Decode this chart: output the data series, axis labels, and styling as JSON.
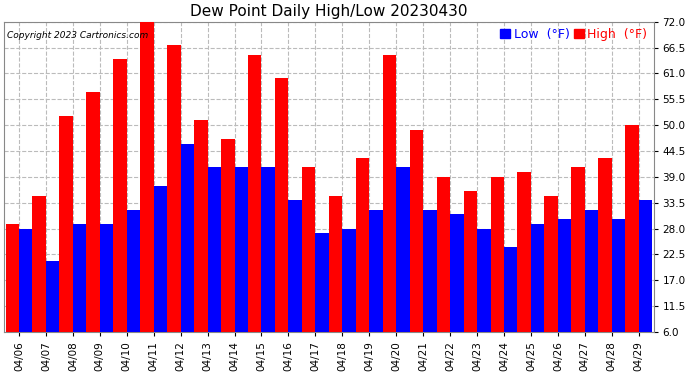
{
  "title": "Dew Point Daily High/Low 20230430",
  "copyright": "Copyright 2023 Cartronics.com",
  "dates": [
    "04/06",
    "04/07",
    "04/08",
    "04/09",
    "04/10",
    "04/11",
    "04/12",
    "04/13",
    "04/14",
    "04/15",
    "04/16",
    "04/17",
    "04/18",
    "04/19",
    "04/20",
    "04/21",
    "04/22",
    "04/23",
    "04/24",
    "04/25",
    "04/26",
    "04/27",
    "04/28",
    "04/29"
  ],
  "high_values": [
    29,
    35,
    52,
    57,
    64,
    73,
    67,
    51,
    47,
    65,
    60,
    41,
    35,
    43,
    65,
    49,
    39,
    36,
    39,
    40,
    35,
    41,
    43,
    50
  ],
  "low_values": [
    28,
    21,
    29,
    29,
    32,
    37,
    46,
    41,
    41,
    41,
    34,
    27,
    28,
    32,
    41,
    32,
    31,
    28,
    24,
    29,
    30,
    32,
    30,
    34
  ],
  "ylim": [
    6.0,
    72.0
  ],
  "ymin": 6.0,
  "yticks": [
    6.0,
    11.5,
    17.0,
    22.5,
    28.0,
    33.5,
    39.0,
    44.5,
    50.0,
    55.5,
    61.0,
    66.5,
    72.0
  ],
  "high_color": "#ff0000",
  "low_color": "#0000ff",
  "bg_color": "#ffffff",
  "grid_color": "#bbbbbb",
  "title_fontsize": 11,
  "tick_fontsize": 7.5,
  "legend_fontsize": 9
}
